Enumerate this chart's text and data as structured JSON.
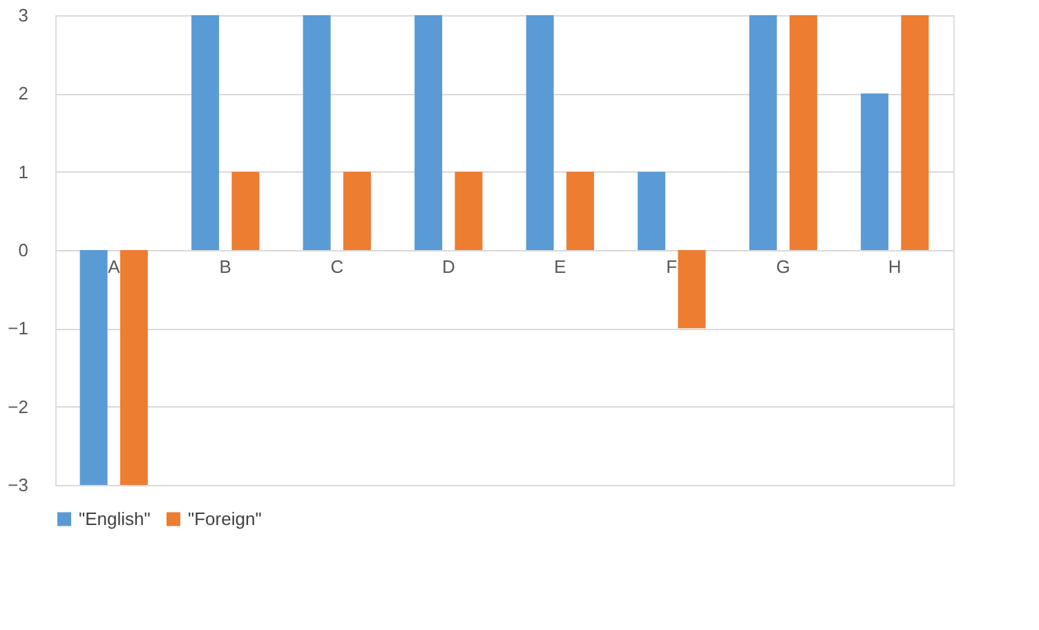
{
  "chart_data": {
    "type": "bar",
    "categories": [
      "A",
      "B",
      "C",
      "D",
      "E",
      "F",
      "G",
      "H"
    ],
    "series": [
      {
        "name": "\"English\"",
        "color": "#5b9bd5",
        "values": [
          -3,
          3,
          3,
          3,
          3,
          1,
          3,
          2
        ]
      },
      {
        "name": "\"Foreign\"",
        "color": "#ed7d31",
        "values": [
          -3,
          1,
          1,
          1,
          1,
          -1,
          3,
          3
        ]
      }
    ],
    "ylim": [
      -3,
      3
    ],
    "yticks": [
      -3,
      -2,
      -1,
      0,
      1,
      2,
      3
    ],
    "grid": "y",
    "legend": "bottom"
  }
}
